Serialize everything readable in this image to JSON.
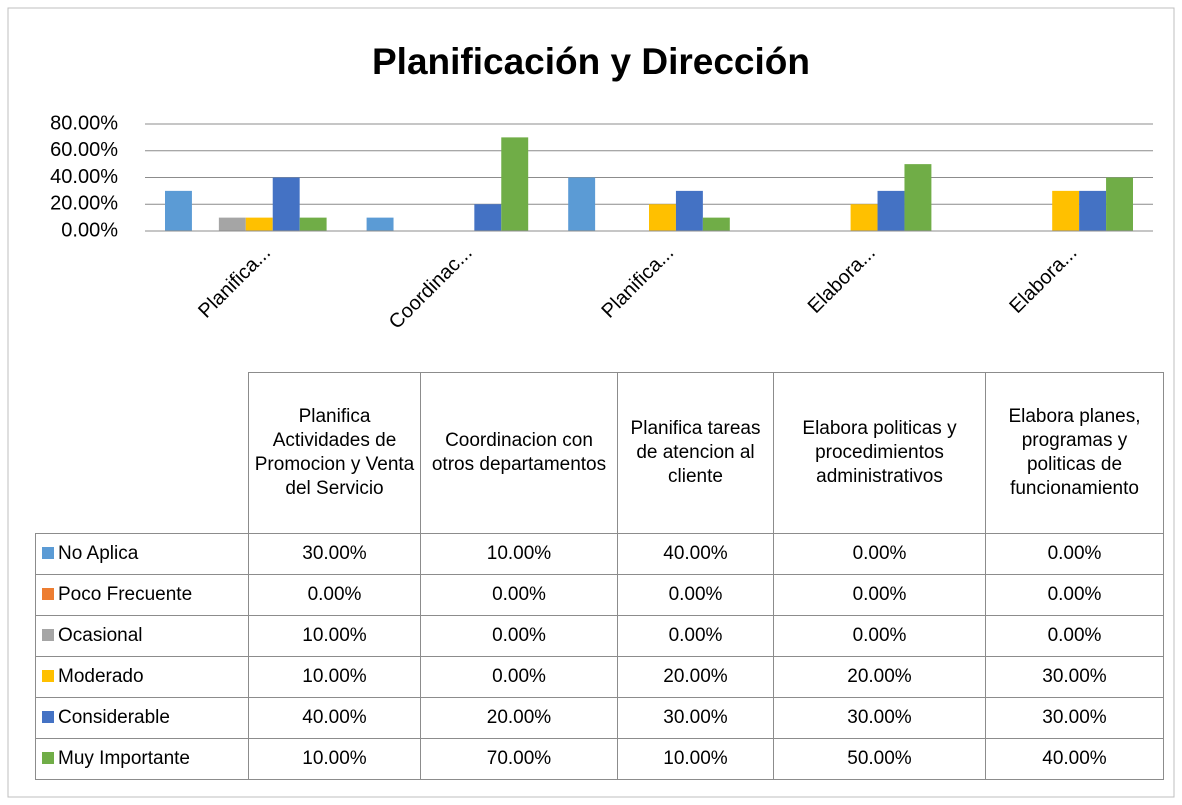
{
  "chart_data": {
    "type": "bar",
    "title": "Planificación y Dirección",
    "categories": [
      "Planifica Actividades de Promocion y Venta del Servicio",
      "Coordinacion con otros departamentos",
      "Planifica tareas de atencion al cliente",
      "Elabora politicas y procedimientos administrativos",
      "Elabora planes, programas y politicas de funcionamiento"
    ],
    "category_labels": [
      "Planifica...",
      "Coordinac...",
      "Planifica...",
      "Elabora...",
      "Elabora..."
    ],
    "series": [
      {
        "name": "No Aplica",
        "color": "#5b9bd5",
        "values": [
          30,
          10,
          40,
          0,
          0
        ],
        "value_labels": [
          "30.00%",
          "10.00%",
          "40.00%",
          "0.00%",
          "0.00%"
        ]
      },
      {
        "name": "Poco Frecuente",
        "color": "#ed7d31",
        "values": [
          0,
          0,
          0,
          0,
          0
        ],
        "value_labels": [
          "0.00%",
          "0.00%",
          "0.00%",
          "0.00%",
          "0.00%"
        ]
      },
      {
        "name": "Ocasional",
        "color": "#a5a5a5",
        "values": [
          10,
          0,
          0,
          0,
          0
        ],
        "value_labels": [
          "10.00%",
          "0.00%",
          "0.00%",
          "0.00%",
          "0.00%"
        ]
      },
      {
        "name": "Moderado",
        "color": "#ffc000",
        "values": [
          10,
          0,
          20,
          20,
          30
        ],
        "value_labels": [
          "10.00%",
          "0.00%",
          "20.00%",
          "20.00%",
          "30.00%"
        ]
      },
      {
        "name": "Considerable",
        "color": "#4472c4",
        "values": [
          40,
          20,
          30,
          30,
          30
        ],
        "value_labels": [
          "40.00%",
          "20.00%",
          "30.00%",
          "30.00%",
          "30.00%"
        ]
      },
      {
        "name": "Muy Importante",
        "color": "#70ad47",
        "values": [
          10,
          70,
          10,
          50,
          40
        ],
        "value_labels": [
          "10.00%",
          "70.00%",
          "10.00%",
          "50.00%",
          "40.00%"
        ]
      }
    ],
    "ylim": [
      0,
      80
    ],
    "yticks": [
      {
        "value": 0,
        "label": "0.00%"
      },
      {
        "value": 20,
        "label": "20.00%"
      },
      {
        "value": 40,
        "label": "40.00%"
      },
      {
        "value": 60,
        "label": "60.00%"
      },
      {
        "value": 80,
        "label": "80.00%"
      }
    ],
    "grid": true
  }
}
